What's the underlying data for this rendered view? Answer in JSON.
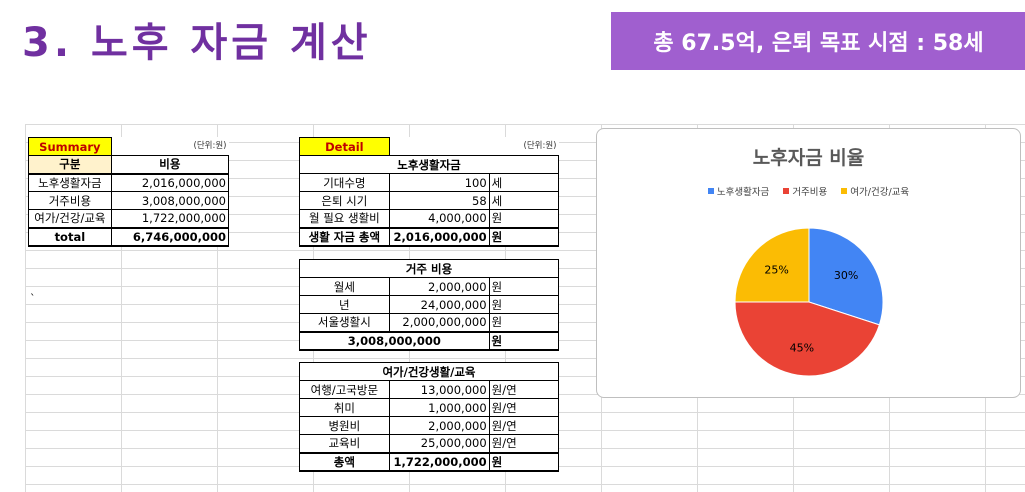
{
  "page_title": "3. 노후 자금 계산",
  "goal_banner": "총 67.5억, 은퇴 목표 시점 : 58세",
  "tick_mark": "`",
  "summary": {
    "caption": "Summary",
    "unit_note": "(단위:원)",
    "header": [
      "구분",
      "비용"
    ],
    "rows": [
      [
        "노후생활자금",
        "2,016,000,000"
      ],
      [
        "거주비용",
        "3,008,000,000"
      ],
      [
        "여가/건강/교육",
        "1,722,000,000"
      ]
    ],
    "total": [
      "total",
      "6,746,000,000"
    ]
  },
  "detail": {
    "caption": "Detail",
    "unit_note": "(단위:원)",
    "living": {
      "title": "노후생활자금",
      "rows": [
        [
          "기대수명",
          "100",
          "세"
        ],
        [
          "은퇴 시기",
          "58",
          "세"
        ],
        [
          "월 필요 생활비",
          "4,000,000",
          "원"
        ]
      ],
      "total": [
        "생활 자금 총액",
        "2,016,000,000",
        "원"
      ]
    },
    "housing": {
      "title": "거주 비용",
      "rows": [
        [
          "월세",
          "2,000,000",
          "원"
        ],
        [
          "년",
          "24,000,000",
          "원"
        ],
        [
          "서울생활시",
          "2,000,000,000",
          "원"
        ]
      ],
      "total": [
        "3,008,000,000",
        "원"
      ]
    },
    "leisure": {
      "title": "여가/건강생활/교육",
      "rows": [
        [
          "여행/고국방문",
          "13,000,000",
          "원/연"
        ],
        [
          "취미",
          "1,000,000",
          "원/연"
        ],
        [
          "병원비",
          "2,000,000",
          "원/연"
        ],
        [
          "교육비",
          "25,000,000",
          "원/연"
        ]
      ],
      "total": [
        "총액",
        "1,722,000,000",
        "원"
      ]
    }
  },
  "chart_data": {
    "type": "pie",
    "title": "노후자금 비율",
    "legend_position": "top",
    "labels": [
      "노후생활자금",
      "거주비용",
      "여가/건강/교육"
    ],
    "values": [
      30,
      45,
      25
    ],
    "data_labels": [
      "30%",
      "45%",
      "25%"
    ],
    "colors": [
      "#4285f4",
      "#ea4335",
      "#fbbc04"
    ]
  }
}
